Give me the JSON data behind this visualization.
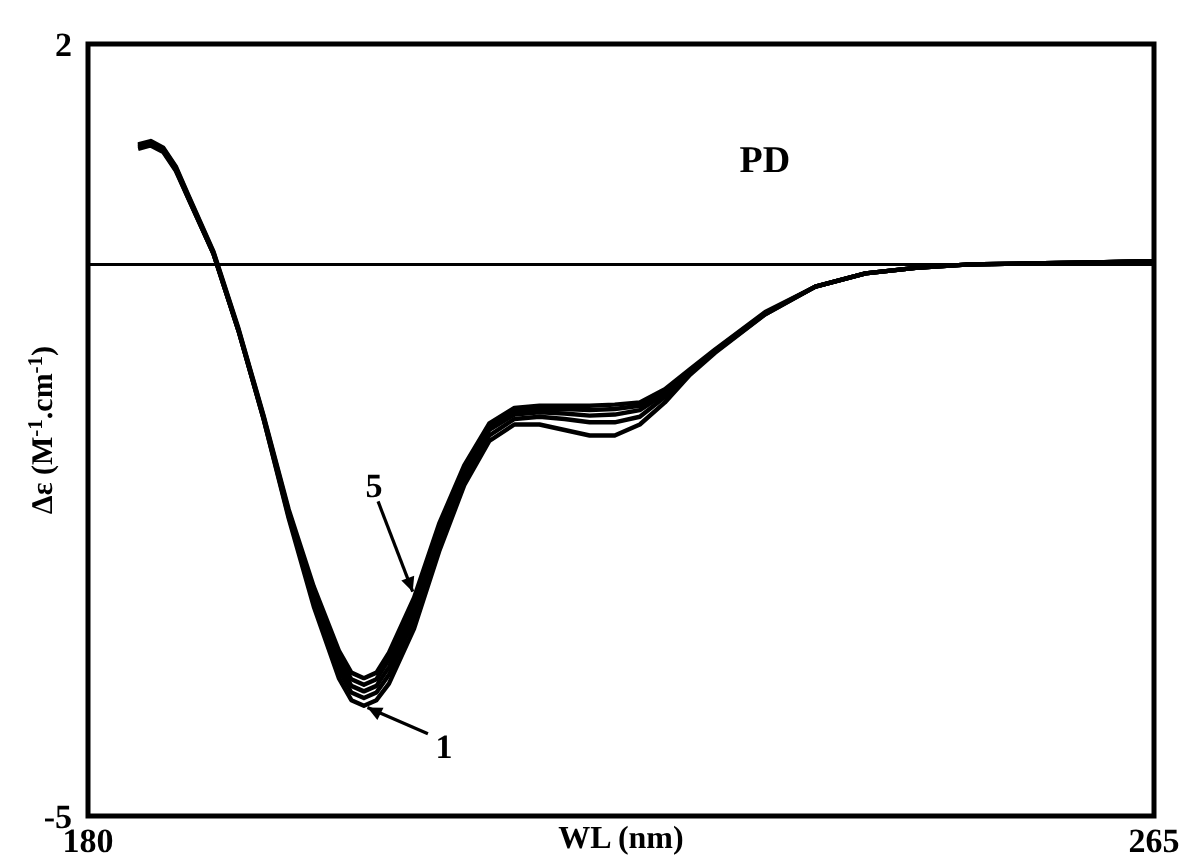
{
  "chart_data": {
    "type": "line",
    "title": "PD",
    "xlabel": "WL (nm)",
    "ylabel": "Δε (M$^{-1}$.cm$^{-1}$)",
    "x": [
      184,
      185,
      186,
      187,
      188,
      190,
      192,
      194,
      196,
      198,
      200,
      201,
      202,
      203,
      204,
      206,
      208,
      210,
      212,
      214,
      216,
      218,
      220,
      222,
      224,
      226,
      228,
      230,
      234,
      238,
      242,
      246,
      250,
      255,
      260,
      265
    ],
    "series": [
      {
        "color": "#000000",
        "values": [
          1.05,
          1.08,
          1.02,
          0.85,
          0.6,
          0.1,
          -0.6,
          -1.4,
          -2.3,
          -3.1,
          -3.75,
          -3.95,
          -4.0,
          -3.95,
          -3.8,
          -3.3,
          -2.6,
          -2.0,
          -1.6,
          -1.45,
          -1.45,
          -1.5,
          -1.55,
          -1.55,
          -1.45,
          -1.25,
          -1.0,
          -0.8,
          -0.45,
          -0.2,
          -0.08,
          -0.03,
          0.0,
          0.01,
          0.02,
          0.03
        ]
      },
      {
        "color": "#000000",
        "values": [
          1.06,
          1.09,
          1.03,
          0.86,
          0.6,
          0.1,
          -0.6,
          -1.4,
          -2.28,
          -3.05,
          -3.68,
          -3.88,
          -3.93,
          -3.88,
          -3.72,
          -3.22,
          -2.52,
          -1.95,
          -1.55,
          -1.4,
          -1.38,
          -1.4,
          -1.43,
          -1.43,
          -1.38,
          -1.2,
          -0.98,
          -0.79,
          -0.45,
          -0.2,
          -0.08,
          -0.03,
          0.0,
          0.01,
          0.02,
          0.03
        ]
      },
      {
        "color": "#000000",
        "values": [
          1.07,
          1.1,
          1.04,
          0.87,
          0.61,
          0.1,
          -0.6,
          -1.39,
          -2.26,
          -3.0,
          -3.62,
          -3.82,
          -3.87,
          -3.82,
          -3.65,
          -3.15,
          -2.45,
          -1.9,
          -1.5,
          -1.36,
          -1.34,
          -1.35,
          -1.37,
          -1.36,
          -1.32,
          -1.17,
          -0.97,
          -0.78,
          -0.44,
          -0.2,
          -0.08,
          -0.03,
          0.0,
          0.01,
          0.02,
          0.03
        ]
      },
      {
        "color": "#000000",
        "values": [
          1.08,
          1.11,
          1.05,
          0.88,
          0.62,
          0.11,
          -0.59,
          -1.38,
          -2.24,
          -2.96,
          -3.56,
          -3.76,
          -3.81,
          -3.76,
          -3.58,
          -3.08,
          -2.4,
          -1.86,
          -1.47,
          -1.33,
          -1.31,
          -1.31,
          -1.32,
          -1.31,
          -1.28,
          -1.15,
          -0.96,
          -0.78,
          -0.44,
          -0.2,
          -0.08,
          -0.03,
          0.0,
          0.01,
          0.02,
          0.03
        ]
      },
      {
        "color": "#000000",
        "values": [
          1.09,
          1.12,
          1.06,
          0.89,
          0.63,
          0.12,
          -0.58,
          -1.37,
          -2.22,
          -2.92,
          -3.5,
          -3.7,
          -3.75,
          -3.7,
          -3.52,
          -3.02,
          -2.35,
          -1.82,
          -1.44,
          -1.3,
          -1.28,
          -1.28,
          -1.28,
          -1.27,
          -1.25,
          -1.13,
          -0.95,
          -0.77,
          -0.43,
          -0.2,
          -0.08,
          -0.03,
          0.0,
          0.01,
          0.02,
          0.03
        ]
      }
    ],
    "xlim": [
      180,
      265
    ],
    "xticks": [
      180,
      265
    ],
    "ylim": [
      -5,
      2
    ],
    "yticks": [
      -5,
      2
    ],
    "ref_lines": [
      {
        "axis": "y",
        "value": 0,
        "color": "#000000"
      }
    ],
    "annotations": [
      {
        "text": "1",
        "x": 202,
        "y": -4.0
      },
      {
        "text": "5",
        "x": 206,
        "y": -3.0
      }
    ],
    "marker": "none",
    "line_style": "solid"
  }
}
